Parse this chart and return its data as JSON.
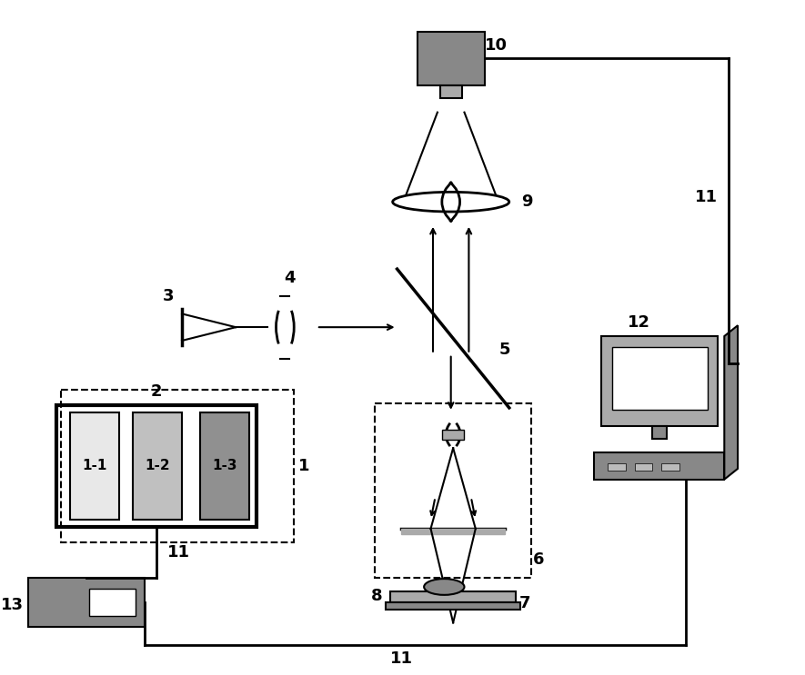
{
  "bg_color": "#ffffff",
  "line_color": "#000000",
  "gray_dark": "#555555",
  "gray_mid": "#888888",
  "gray_light": "#aaaaaa",
  "gray_lighter": "#cccccc",
  "gray_lightest": "#e0e0e0",
  "figsize": [
    8.85,
    7.43
  ],
  "dpi": 100
}
